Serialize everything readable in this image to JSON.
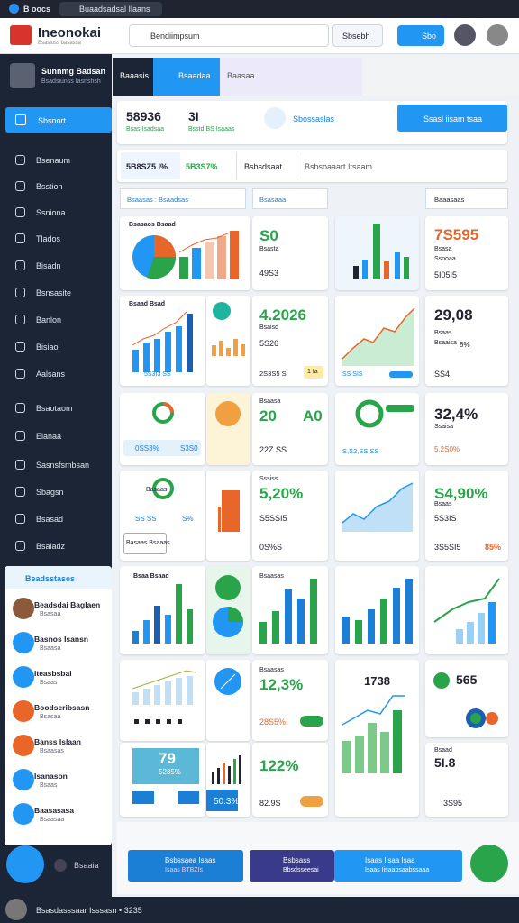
{
  "browser": {
    "app": "B oocs",
    "tab": "Buaadsadsal Ilaans"
  },
  "header": {
    "logo": "Ineonokai",
    "tagline": "Bsasiuss basassa",
    "search": "Bendiimpsum",
    "search_button": "Sbsebh",
    "action": "Sbo"
  },
  "sidebar": {
    "profile": {
      "name": "Sunnmg Badsan",
      "role": "Bsadsiunss Iasnshsh"
    },
    "active": "Sbsnort",
    "menu": [
      "Bsenaum",
      "Bsstion",
      "Ssniona",
      "Tlados",
      "Bisadn",
      "Bsnsasite",
      "Banlon",
      "Bisiaol",
      "Aalsans",
      "Bsaotaom",
      "Elanaa",
      "Sasnsfsmbsan",
      "Sbagsn",
      "Bsasad",
      "Bsaladz"
    ],
    "panel": {
      "title": "Beadsstases",
      "items": [
        {
          "name": "Beadsdai Baglaen",
          "sub": "Bsasaa"
        },
        {
          "name": "Basnos Isansn",
          "sub": "Bsaasa"
        },
        {
          "name": "Iteasbsbai",
          "sub": "Bsaas"
        },
        {
          "name": "Boodseribsasn",
          "sub": "Bsasaa"
        },
        {
          "name": "Banss Islaan",
          "sub": "Bsaasas"
        },
        {
          "name": "Isanason",
          "sub": "Bsaas"
        },
        {
          "name": "Baasasasa",
          "sub": "Bsaasaa"
        }
      ]
    },
    "bottom": "Bsaaia"
  },
  "main": {
    "tabs": [
      "Baaasis",
      "Bsaadaa",
      "Baasaa"
    ],
    "summary": {
      "value": "58936",
      "value_sub": "Bsas Isadsaa",
      "count": "3I",
      "count_sub": "Bsstd BS Isaaas",
      "label": "Sbossaslas",
      "button": "Ssasl iisam tsaa"
    },
    "filters": [
      "5B8SZ5 I%",
      "5B3S7%",
      "Bsbsdsaat",
      "Bsbsoaaart Itsaam"
    ],
    "dropdowns": [
      "Bsaasas : Bsaadsas",
      "Bsasaaa",
      "Baaasaas"
    ],
    "cards": {
      "r1": {
        "title": "Bsasaos Bsaad",
        "kpi": "S0",
        "kpi_sub": "Bsasta",
        "kpi_foot": "49S3",
        "big": "7S595",
        "big_sub": "Bsasa",
        "big_sub2": "Ssnoaa",
        "big_foot": "5I05I5"
      },
      "r2": {
        "title": "Bsaad Bsad",
        "foot": "5S3I3 SS",
        "kpi": "4.2026",
        "kpi_sub": "Bsaisd",
        "kpi_mid": "5S26",
        "kpi_foot": "2S3S5 S",
        "kpi_tag": "1 Ia",
        "chart_foot": "SS SIS",
        "big": "29,08",
        "big_sub": "Bsaas",
        "big_sub2": "Bsaaisa",
        "big_foot": "SS4",
        "big_pct": "8%"
      },
      "r3": {
        "pill": "0SS3%",
        "pill2": "S3S0",
        "a": "20",
        "b": "A0",
        "sub": "Bsaasa",
        "foot": "22Z.SS",
        "chart_foot": "S,S2,SS,SS",
        "big": "32,4%",
        "big_sub": "Ssaisa",
        "big_foot": "5,2S0%"
      },
      "r4": {
        "label": "Basaas",
        "small": "SS SS",
        "pct": "S%",
        "button": "Basaas Bsaaas",
        "kpi": "5,20%",
        "kpi_sub": "Sssiss",
        "kpi_mid": "S5SSI5",
        "kpi_foot": "0S%S",
        "big": "S4,90%",
        "big_sub": "Bsaas",
        "big_mid": "5S3IS",
        "big_foot": "3S5SI5",
        "big_pct": "85%"
      },
      "r5": {
        "title": "Bsaa Bsaad",
        "kpi_title": "Bsaasas"
      },
      "r6": {
        "kpi": "12,3%",
        "kpi_sub": "Bsaasas",
        "kpi_foot": "28S5%",
        "mid": "1738",
        "big": "565"
      },
      "r7": {
        "tile": "79",
        "tile_sub": "5235%",
        "pill": "50.3%",
        "kpi": "122%",
        "kpi_foot": "82.9S",
        "big": "5I.8",
        "big_sub": "Bsaad",
        "big_foot": "3S95"
      }
    },
    "actions": [
      {
        "title": "Bsbssaea Isaas",
        "sub": "Isaas BTBZIs"
      },
      {
        "title": "Bsbsass",
        "sub": "Bbsdsseesai"
      },
      {
        "title": "Isaas Iisaa Isaa",
        "sub": "Isaas Iisaabsaabssaaa"
      }
    ]
  },
  "footer": {
    "status": "Bsasdasssaar Isssasn • 3235"
  }
}
